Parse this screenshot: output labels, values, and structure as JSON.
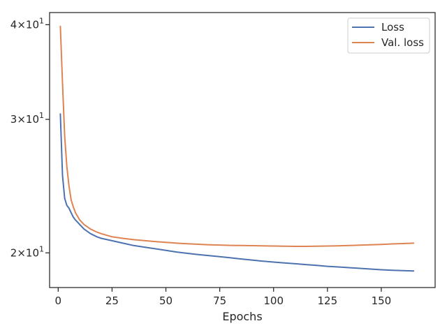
{
  "chart_data": {
    "type": "line",
    "title": "",
    "xlabel": "Epochs",
    "ylabel": "",
    "yscale": "log",
    "xlim": [
      -4,
      175
    ],
    "ylim": [
      18.0,
      41.5
    ],
    "x_ticks": [
      0,
      25,
      50,
      75,
      100,
      125,
      150
    ],
    "x_tick_labels": [
      "0",
      "25",
      "50",
      "75",
      "100",
      "125",
      "150"
    ],
    "y_ticks": [
      20,
      30,
      40
    ],
    "y_tick_labels": [
      {
        "base": "2",
        "exp": "1"
      },
      {
        "base": "3",
        "exp": "1"
      },
      {
        "base": "4",
        "exp": "1"
      }
    ],
    "grid": false,
    "legend_position": "top-right",
    "colors": {
      "loss": "#4c72b0",
      "val_loss": "#dd8452",
      "axes": "#262626"
    },
    "series": [
      {
        "name": "Loss",
        "color": "#4c72b0",
        "x": [
          1,
          2,
          3,
          4,
          5,
          6,
          7,
          8,
          10,
          12,
          15,
          18,
          20,
          25,
          30,
          35,
          40,
          45,
          50,
          55,
          60,
          65,
          70,
          75,
          80,
          85,
          90,
          95,
          100,
          105,
          110,
          115,
          120,
          125,
          130,
          135,
          140,
          145,
          150,
          155,
          160,
          165
        ],
        "y": [
          30.5,
          25.3,
          23.6,
          23.1,
          22.9,
          22.6,
          22.3,
          22.1,
          21.8,
          21.5,
          21.2,
          21.0,
          20.9,
          20.75,
          20.6,
          20.45,
          20.35,
          20.25,
          20.15,
          20.05,
          19.97,
          19.9,
          19.83,
          19.77,
          19.7,
          19.63,
          19.57,
          19.5,
          19.45,
          19.4,
          19.35,
          19.3,
          19.25,
          19.2,
          19.16,
          19.12,
          19.08,
          19.04,
          19.0,
          18.97,
          18.95,
          18.93
        ]
      },
      {
        "name": "Val. loss",
        "color": "#dd8452",
        "x": [
          1,
          2,
          3,
          4,
          5,
          6,
          7,
          8,
          10,
          12,
          15,
          18,
          20,
          25,
          30,
          35,
          40,
          45,
          50,
          55,
          60,
          65,
          70,
          75,
          80,
          85,
          90,
          95,
          100,
          105,
          110,
          115,
          120,
          125,
          130,
          135,
          140,
          145,
          150,
          155,
          160,
          165
        ],
        "y": [
          39.8,
          33.5,
          28.5,
          26.0,
          24.5,
          23.5,
          23.0,
          22.6,
          22.1,
          21.8,
          21.5,
          21.3,
          21.2,
          21.0,
          20.9,
          20.82,
          20.76,
          20.7,
          20.65,
          20.6,
          20.56,
          20.53,
          20.5,
          20.48,
          20.46,
          20.45,
          20.44,
          20.43,
          20.42,
          20.41,
          20.4,
          20.4,
          20.41,
          20.42,
          20.43,
          20.45,
          20.47,
          20.5,
          20.52,
          20.55,
          20.57,
          20.6
        ]
      }
    ]
  }
}
